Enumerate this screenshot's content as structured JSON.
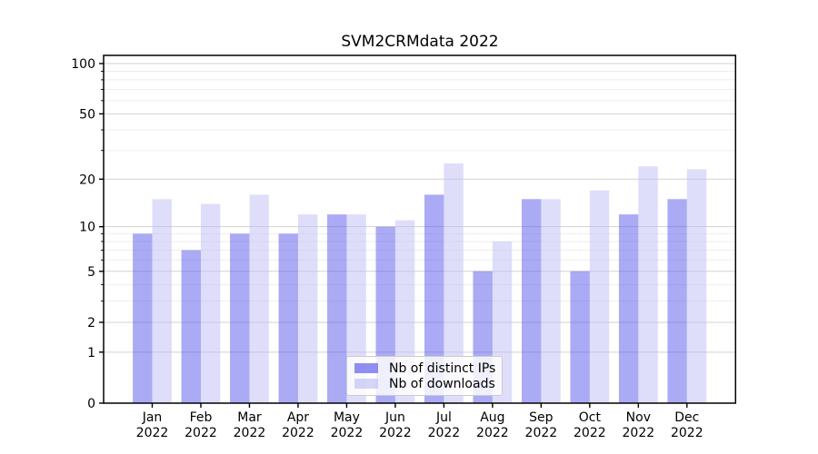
{
  "chart_data": {
    "type": "bar",
    "title": "SVM2CRMdata 2022",
    "categories": [
      "Jan 2022",
      "Feb 2022",
      "Mar 2022",
      "Apr 2022",
      "May 2022",
      "Jun 2022",
      "Jul 2022",
      "Aug 2022",
      "Sep 2022",
      "Oct 2022",
      "Nov 2022",
      "Dec 2022"
    ],
    "series": [
      {
        "name": "Nb of distinct IPs",
        "color": "#5555eb",
        "alpha": 0.5,
        "values": [
          9,
          7,
          9,
          9,
          12,
          10,
          16,
          5,
          15,
          5,
          12,
          15
        ]
      },
      {
        "name": "Nb of downloads",
        "color": "#bebef5",
        "alpha": 0.5,
        "values": [
          15,
          14,
          16,
          12,
          12,
          11,
          25,
          8,
          15,
          17,
          24,
          23
        ]
      }
    ],
    "yscale": "log1p",
    "ylim": [
      0,
      112
    ],
    "yticks": [
      100,
      50,
      20,
      10,
      5,
      2,
      1,
      0
    ],
    "ytick_labels": [
      "100",
      "50",
      "20",
      "10",
      "5",
      "2",
      "1",
      "0"
    ],
    "minor_yticks": [
      90,
      80,
      70,
      60,
      40,
      30,
      9,
      8,
      7,
      6,
      4,
      3
    ],
    "grid": true,
    "legend_position": "lower center",
    "bar_width_ratio": 0.4
  }
}
